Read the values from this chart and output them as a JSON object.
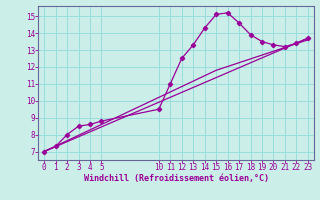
{
  "xlabel": "Windchill (Refroidissement éolien,°C)",
  "background_color": "#cceee8",
  "grid_color": "#99dddd",
  "line_color": "#990099",
  "spine_color": "#666699",
  "xlim": [
    -0.5,
    23.5
  ],
  "ylim": [
    6.5,
    15.6
  ],
  "xticks": [
    0,
    1,
    2,
    3,
    4,
    5,
    10,
    11,
    12,
    13,
    14,
    15,
    16,
    17,
    18,
    19,
    20,
    21,
    22,
    23
  ],
  "yticks": [
    7,
    8,
    9,
    10,
    11,
    12,
    13,
    14,
    15
  ],
  "main_x": [
    0,
    1,
    2,
    3,
    4,
    5,
    10,
    11,
    12,
    13,
    14,
    15,
    16,
    17,
    18,
    19,
    20,
    21,
    22,
    23
  ],
  "main_y": [
    7.0,
    7.3,
    8.0,
    8.5,
    8.6,
    8.8,
    9.5,
    11.0,
    12.5,
    13.3,
    14.3,
    15.1,
    15.2,
    14.6,
    13.9,
    13.5,
    13.3,
    13.2,
    13.4,
    13.7
  ],
  "trend1_x": [
    0,
    23
  ],
  "trend1_y": [
    7.0,
    13.7
  ],
  "trend2_x": [
    0,
    10,
    15,
    23
  ],
  "trend2_y": [
    7.0,
    10.2,
    11.8,
    13.6
  ],
  "xlabel_fontsize": 6,
  "tick_fontsize": 5.5
}
